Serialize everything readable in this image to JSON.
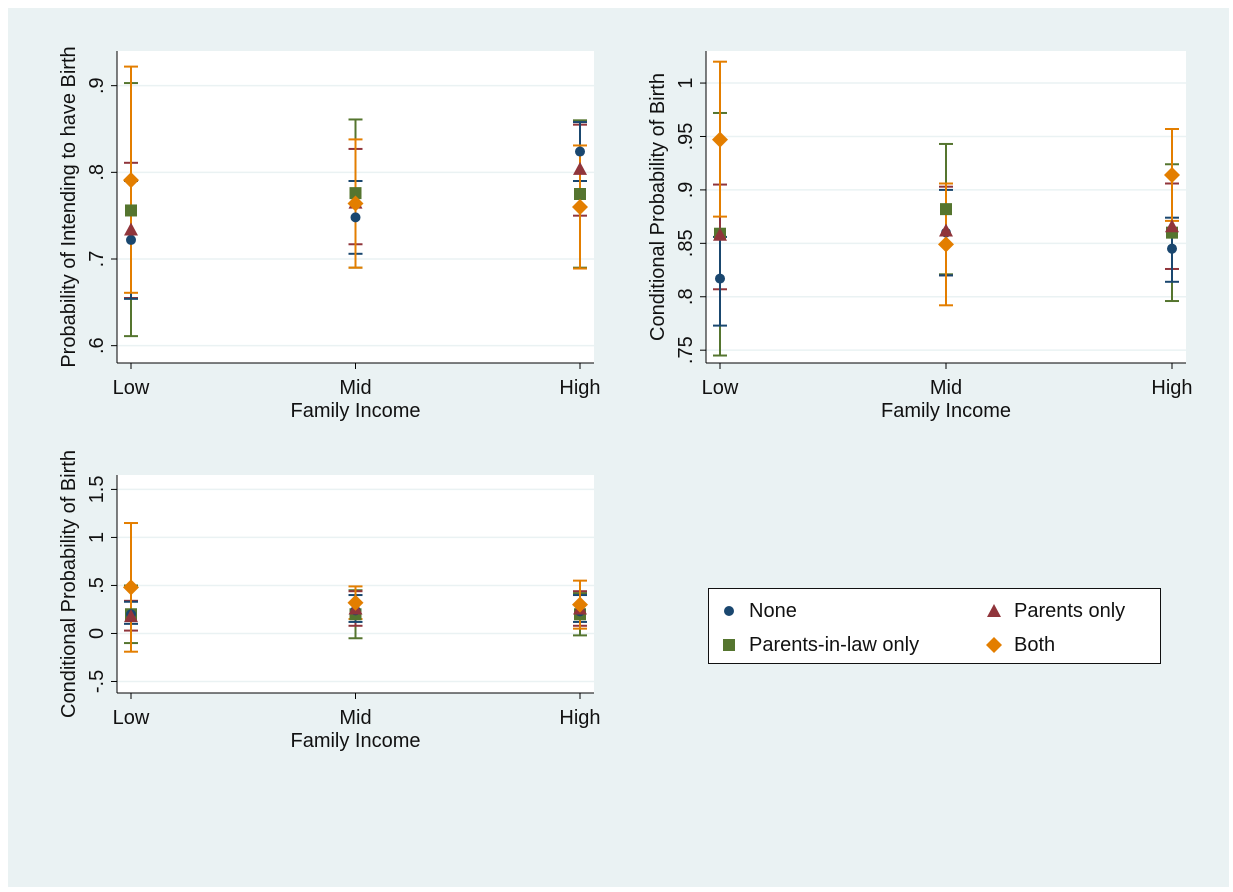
{
  "figure": {
    "background": "#eaf2f3",
    "plot_background": "#ffffff",
    "grid_color": "#eaf2f3",
    "legend_entries": [
      {
        "label": "None",
        "marker": "circle-icon",
        "color": "#1a476f"
      },
      {
        "label": "Parents only",
        "marker": "triangle-icon",
        "color": "#90353b"
      },
      {
        "label": "Parents-in-law only",
        "marker": "square-icon",
        "color": "#55752f"
      },
      {
        "label": "Both",
        "marker": "diamond-icon",
        "color": "#e37e00"
      }
    ]
  },
  "chart_data": [
    {
      "type": "scatter",
      "title": "",
      "xlabel": "Family Income",
      "ylabel": "Probability of Intending to have Birth",
      "categories": [
        "Low",
        "Mid",
        "High"
      ],
      "ylim": [
        0.58,
        0.94
      ],
      "yticks": [
        0.6,
        0.7,
        0.8,
        0.9
      ],
      "ytick_labels": [
        ".6",
        ".7",
        ".8",
        ".9"
      ],
      "grid": true,
      "series": [
        {
          "name": "None",
          "values": [
            0.722,
            0.748,
            0.824
          ],
          "lower": [
            0.654,
            0.706,
            0.79
          ],
          "upper": [
            0.79,
            0.79,
            0.858
          ]
        },
        {
          "name": "Parents only",
          "values": [
            0.734,
            0.765,
            0.804
          ],
          "lower": [
            0.655,
            0.717,
            0.75
          ],
          "upper": [
            0.811,
            0.827,
            0.855
          ]
        },
        {
          "name": "Parents-in-law only",
          "values": [
            0.756,
            0.776,
            0.775
          ],
          "lower": [
            0.611,
            0.69,
            0.69
          ],
          "upper": [
            0.903,
            0.861,
            0.86
          ]
        },
        {
          "name": "Both",
          "values": [
            0.791,
            0.764,
            0.76
          ],
          "lower": [
            0.661,
            0.69,
            0.689
          ],
          "upper": [
            0.922,
            0.838,
            0.831
          ]
        }
      ]
    },
    {
      "type": "scatter",
      "title": "",
      "xlabel": "Family Income",
      "ylabel": "Conditional Probability of Birth",
      "categories": [
        "Low",
        "Mid",
        "High"
      ],
      "ylim": [
        0.738,
        1.03
      ],
      "yticks": [
        0.75,
        0.8,
        0.85,
        0.9,
        0.95,
        1.0
      ],
      "ytick_labels": [
        ".75",
        ".8",
        ".85",
        ".9",
        ".95",
        "1"
      ],
      "grid": true,
      "series": [
        {
          "name": "None",
          "values": [
            0.817,
            0.86,
            0.845
          ],
          "lower": [
            0.773,
            0.82,
            0.814
          ],
          "upper": [
            0.856,
            0.9,
            0.874
          ]
        },
        {
          "name": "Parents only",
          "values": [
            0.858,
            0.862,
            0.866
          ],
          "lower": [
            0.807,
            0.82,
            0.826
          ],
          "upper": [
            0.905,
            0.903,
            0.906
          ]
        },
        {
          "name": "Parents-in-law only",
          "values": [
            0.859,
            0.882,
            0.86
          ],
          "lower": [
            0.745,
            0.821,
            0.796
          ],
          "upper": [
            0.972,
            0.943,
            0.924
          ]
        },
        {
          "name": "Both",
          "values": [
            0.947,
            0.849,
            0.914
          ],
          "lower": [
            0.875,
            0.792,
            0.871
          ],
          "upper": [
            1.02,
            0.906,
            0.957
          ]
        }
      ]
    },
    {
      "type": "scatter",
      "title": "",
      "xlabel": "Family Income",
      "ylabel": "Conditional Probability of Birth",
      "categories": [
        "Low",
        "Mid",
        "High"
      ],
      "ylim": [
        -0.62,
        1.65
      ],
      "yticks": [
        -0.5,
        0,
        0.5,
        1,
        1.5
      ],
      "ytick_labels": [
        "-.5",
        "0",
        ".5",
        "1",
        "1.5"
      ],
      "grid": true,
      "series": [
        {
          "name": "None",
          "values": [
            0.2,
            0.24,
            0.23
          ],
          "lower": [
            0.1,
            0.12,
            0.12
          ],
          "upper": [
            0.33,
            0.4,
            0.4
          ]
        },
        {
          "name": "Parents only",
          "values": [
            0.18,
            0.26,
            0.26
          ],
          "lower": [
            0.03,
            0.08,
            0.08
          ],
          "upper": [
            0.34,
            0.44,
            0.44
          ]
        },
        {
          "name": "Parents-in-law only",
          "values": [
            0.2,
            0.2,
            0.2
          ],
          "lower": [
            -0.1,
            -0.05,
            -0.02
          ],
          "upper": [
            0.5,
            0.45,
            0.42
          ]
        },
        {
          "name": "Both",
          "values": [
            0.48,
            0.32,
            0.3
          ],
          "lower": [
            -0.19,
            0.15,
            0.05
          ],
          "upper": [
            1.15,
            0.49,
            0.55
          ]
        }
      ]
    }
  ]
}
